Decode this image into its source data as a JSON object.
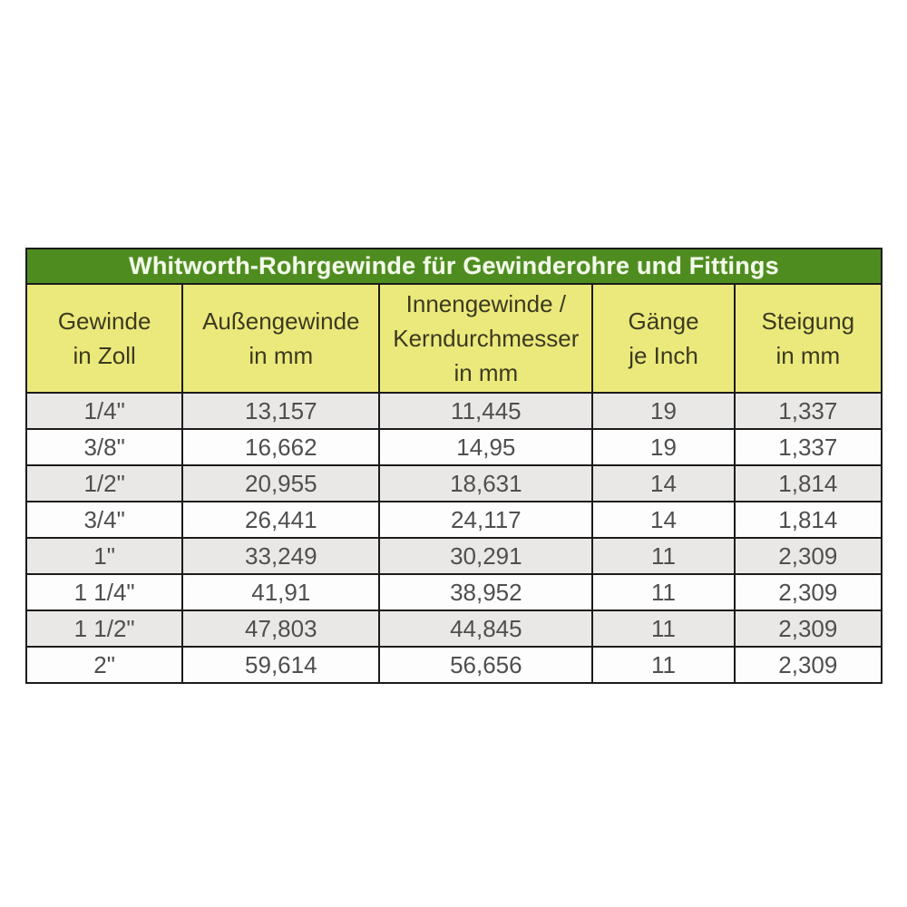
{
  "colors": {
    "title_bar_green": "#4e8c1f",
    "title_text": "#f2fae9",
    "header_yellow": "#ece97c",
    "header_text": "#3b3a20",
    "row_gray": "#e9e8e6",
    "row_white": "#fdfdfd",
    "data_text": "#4f4f4f",
    "border": "#1b1b1b"
  },
  "table": {
    "title": "Whitworth-Rohrgewinde für Gewinderohre und Fittings",
    "columns": [
      "Gewinde\nin Zoll",
      "Außengewinde\nin mm",
      "Innengewinde /\nKerndurchmesser\nin mm",
      "Gänge\nje Inch",
      "Steigung\nin mm"
    ],
    "rows": [
      [
        "1/4\"",
        "13,157",
        "11,445",
        "19",
        "1,337"
      ],
      [
        "3/8\"",
        "16,662",
        "14,95",
        "19",
        "1,337"
      ],
      [
        "1/2\"",
        "20,955",
        "18,631",
        "14",
        "1,814"
      ],
      [
        "3/4\"",
        "26,441",
        "24,117",
        "14",
        "1,814"
      ],
      [
        "1\"",
        "33,249",
        "30,291",
        "11",
        "2,309"
      ],
      [
        "1 1/4\"",
        "41,91",
        "38,952",
        "11",
        "2,309"
      ],
      [
        "1 1/2\"",
        "47,803",
        "44,845",
        "11",
        "2,309"
      ],
      [
        "2\"",
        "59,614",
        "56,656",
        "11",
        "2,309"
      ]
    ]
  }
}
